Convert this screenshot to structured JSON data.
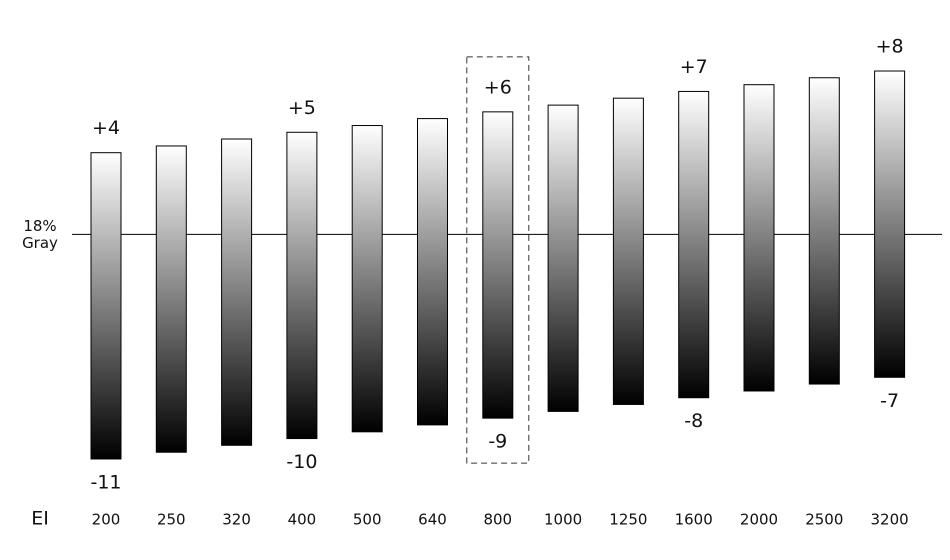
{
  "chart_data": {
    "type": "range-bar",
    "x_label": "EI",
    "categories": [
      "200",
      "250",
      "320",
      "400",
      "500",
      "640",
      "800",
      "1000",
      "1250",
      "1600",
      "2000",
      "2500",
      "3200"
    ],
    "high": {
      "values": [
        4,
        4.33,
        4.67,
        5,
        5.33,
        5.67,
        6,
        6.33,
        6.67,
        7,
        7.33,
        7.67,
        8
      ],
      "value_labels": [
        "+4",
        null,
        null,
        "+5",
        null,
        null,
        "+6",
        null,
        null,
        "+7",
        null,
        null,
        "+8"
      ]
    },
    "low": {
      "values": [
        -11,
        -10.67,
        -10.33,
        -10,
        -9.67,
        -9.33,
        -9,
        -8.67,
        -8.33,
        -8,
        -7.67,
        -7.33,
        -7
      ],
      "value_labels": [
        "-11",
        null,
        null,
        "-10",
        null,
        null,
        "-9",
        null,
        null,
        "-8",
        null,
        null,
        "-7"
      ]
    },
    "reference_line": {
      "value": 0,
      "label": [
        "18%",
        "Gray"
      ]
    },
    "highlight": "800",
    "ylim": [
      -12,
      9
    ],
    "gradient": [
      "#ffffff",
      "#000000"
    ]
  }
}
